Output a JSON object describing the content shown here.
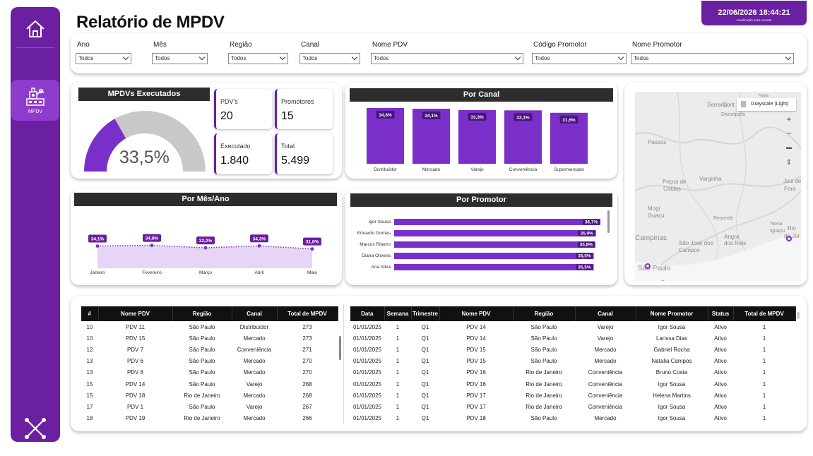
{
  "header": {
    "title": "Relatório de MPDV",
    "timestamp": "22/06/2026 18:44:21",
    "timestamp_caption": "Atualização mais recente"
  },
  "sidebar": {
    "mpdv_label": "MPDV"
  },
  "filters": [
    {
      "label": "Ano",
      "value": "Todos"
    },
    {
      "label": "Mês",
      "value": "Todos"
    },
    {
      "label": "Região",
      "value": "Todos"
    },
    {
      "label": "Canal",
      "value": "Todos"
    },
    {
      "label": "Nome PDV",
      "value": "Todos"
    },
    {
      "label": "Código Promotor",
      "value": "Todos"
    },
    {
      "label": "Nome Promotor",
      "value": "Todos"
    }
  ],
  "gauge": {
    "title": "MPDVs Executados",
    "value_label": "33,5%",
    "value": 0.335
  },
  "kpis": [
    {
      "label": "PDV's",
      "value": "20"
    },
    {
      "label": "Promotores",
      "value": "15"
    },
    {
      "label": "Executado",
      "value": "1.840"
    },
    {
      "label": "Total",
      "value": "5.499"
    }
  ],
  "por_canal": {
    "title": "Por Canal"
  },
  "por_mes": {
    "title": "Por Mês/Ano"
  },
  "por_promotor": {
    "title": "Por Promotor"
  },
  "map": {
    "style_label": "Grayscale (Light)",
    "places": [
      "Nova",
      "Serrana",
      "Cont",
      "Divinópolis",
      "Passos",
      "Poços de",
      "Caldas",
      "Varginha",
      "Juiz de",
      "Fora",
      "Mogi",
      "Guaçu",
      "Resende",
      "Nova",
      "Iguaçu",
      "Rio",
      "de Jar",
      "Campinas",
      "São José dos",
      "Campos",
      "Angra",
      "dos Reis",
      "São Paulo",
      "Santos"
    ],
    "colors": {
      "land": "#e8e8e8",
      "dot": "#6b1fa1"
    }
  },
  "chart_data": [
    {
      "type": "bar",
      "title": "Por Canal",
      "categories": [
        "Distribuidor",
        "Mercado",
        "Varejo",
        "Conveniência",
        "Supermercado"
      ],
      "values": [
        34.6,
        34.1,
        33.3,
        33.1,
        31.6
      ],
      "labels": [
        "34,6%",
        "34,1%",
        "33,3%",
        "33,1%",
        "31,6%"
      ],
      "color": "#7b2fc9"
    },
    {
      "type": "area",
      "title": "Por Mês/Ano",
      "categories": [
        "Janeiro",
        "Fevereiro",
        "Março",
        "Abril",
        "Maio"
      ],
      "values": [
        34.1,
        34.8,
        32.2,
        34.3,
        31.0
      ],
      "labels": [
        "34,1%",
        "34,8%",
        "32,2%",
        "34,3%",
        "31,0%"
      ],
      "color": "#7b2fc9"
    },
    {
      "type": "bar",
      "orientation": "horizontal",
      "title": "Por Promotor",
      "categories": [
        "Igor Sousa",
        "Eduardo Gomes",
        "Marcos Ribeiro",
        "Diana Oliveira",
        "Ana Silva"
      ],
      "values": [
        36.7,
        35.9,
        35.8,
        35.5,
        35.5
      ],
      "labels": [
        "36,7%",
        "35,9%",
        "35,8%",
        "35,5%",
        "35,5%"
      ],
      "color": "#7b2fc9"
    }
  ],
  "table_left": {
    "columns": [
      "#",
      "Nome PDV",
      "Região",
      "Canal",
      "Total de MPDV"
    ],
    "rows": [
      [
        "10",
        "PDV 11",
        "São Paulo",
        "Distribuidor",
        "273"
      ],
      [
        "10",
        "PDV 15",
        "São Paulo",
        "Mercado",
        "273"
      ],
      [
        "12",
        "PDV 7",
        "São Paulo",
        "Conveniência",
        "271"
      ],
      [
        "13",
        "PDV 6",
        "São Paulo",
        "Mercado",
        "270"
      ],
      [
        "13",
        "PDV 8",
        "São Paulo",
        "Mercado",
        "270"
      ],
      [
        "15",
        "PDV 14",
        "São Paulo",
        "Varejo",
        "268"
      ],
      [
        "15",
        "PDV 18",
        "Rio de Janeiro",
        "Mercado",
        "268"
      ],
      [
        "17",
        "PDV 1",
        "São Paulo",
        "Varejo",
        "267"
      ],
      [
        "18",
        "PDV 19",
        "Rio de Janeiro",
        "Mercado",
        "266"
      ]
    ]
  },
  "table_right": {
    "columns": [
      "Data",
      "Semana",
      "Trimestre",
      "Nome PDV",
      "Região",
      "Canal",
      "Nome Promotor",
      "Status",
      "Total de MPDV"
    ],
    "rows": [
      [
        "01/01/2025",
        "1",
        "Q1",
        "PDV 14",
        "São Paulo",
        "Varejo",
        "Igor Sousa",
        "Ativo",
        "1"
      ],
      [
        "01/01/2025",
        "1",
        "Q1",
        "PDV 14",
        "São Paulo",
        "Varejo",
        "Larissa Dias",
        "Ativo",
        "1"
      ],
      [
        "01/01/2025",
        "1",
        "Q1",
        "PDV 15",
        "São Paulo",
        "Mercado",
        "Gabriel Rocha",
        "Ativo",
        "1"
      ],
      [
        "01/01/2025",
        "1",
        "Q1",
        "PDV 15",
        "São Paulo",
        "Mercado",
        "Natalia Campos",
        "Ativo",
        "1"
      ],
      [
        "01/01/2025",
        "1",
        "Q1",
        "PDV 16",
        "Rio de Janeiro",
        "Conveniência",
        "Bruno Costa",
        "Ativo",
        "1"
      ],
      [
        "01/01/2025",
        "1",
        "Q1",
        "PDV 16",
        "Rio de Janeiro",
        "Conveniência",
        "Igor Sousa",
        "Ativo",
        "1"
      ],
      [
        "01/01/2025",
        "1",
        "Q1",
        "PDV 17",
        "Rio de Janeiro",
        "Conveniência",
        "Helena Martins",
        "Ativo",
        "1"
      ],
      [
        "01/01/2025",
        "1",
        "Q1",
        "PDV 17",
        "Rio de Janeiro",
        "Conveniência",
        "Igor Sousa",
        "Ativo",
        "1"
      ],
      [
        "01/01/2025",
        "1",
        "Q1",
        "PDV 18",
        "São Paulo",
        "Mercado",
        "Igor Sousa",
        "Ativo",
        "1"
      ]
    ]
  }
}
